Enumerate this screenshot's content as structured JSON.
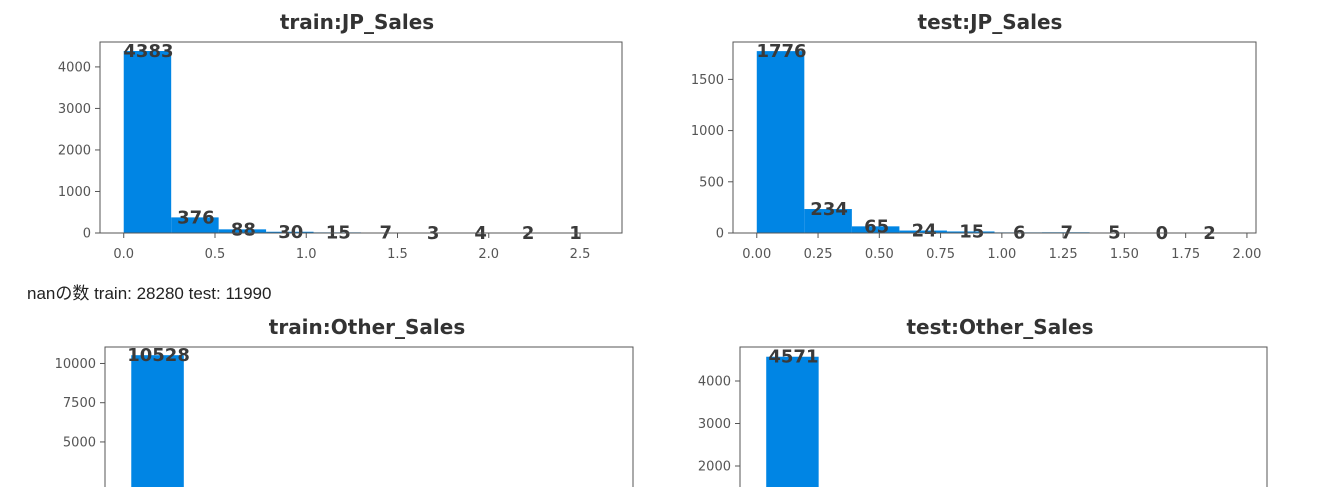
{
  "note": {
    "text": "nanの数 train: 28280 test: 11990"
  },
  "chart_data": [
    {
      "type": "bar",
      "title": "train:JP_Sales",
      "bar_color": "#0085e4",
      "bins": [
        {
          "x0": 0.0,
          "x1": 0.26,
          "count": 4383
        },
        {
          "x0": 0.26,
          "x1": 0.52,
          "count": 376
        },
        {
          "x0": 0.52,
          "x1": 0.78,
          "count": 88
        },
        {
          "x0": 0.78,
          "x1": 1.04,
          "count": 30
        },
        {
          "x0": 1.04,
          "x1": 1.3,
          "count": 15
        },
        {
          "x0": 1.3,
          "x1": 1.56,
          "count": 7
        },
        {
          "x0": 1.56,
          "x1": 1.82,
          "count": 3
        },
        {
          "x0": 1.82,
          "x1": 2.08,
          "count": 4
        },
        {
          "x0": 2.08,
          "x1": 2.34,
          "count": 2
        },
        {
          "x0": 2.34,
          "x1": 2.6,
          "count": 1
        }
      ],
      "xlim": [
        -0.13,
        2.73
      ],
      "ylim": [
        0,
        4600
      ],
      "xticks": [
        0.0,
        0.5,
        1.0,
        1.5,
        2.0,
        2.5
      ],
      "xtick_labels": [
        "0.0",
        "0.5",
        "1.0",
        "1.5",
        "2.0",
        "2.5"
      ],
      "yticks": [
        0,
        1000,
        2000,
        3000,
        4000
      ],
      "ytick_labels": [
        "0",
        "1000",
        "2000",
        "3000",
        "4000"
      ]
    },
    {
      "type": "bar",
      "title": "test:JP_Sales",
      "bar_color": "#0085e4",
      "bins": [
        {
          "x0": 0.0,
          "x1": 0.194,
          "count": 1776
        },
        {
          "x0": 0.194,
          "x1": 0.388,
          "count": 234
        },
        {
          "x0": 0.388,
          "x1": 0.582,
          "count": 65
        },
        {
          "x0": 0.582,
          "x1": 0.776,
          "count": 24
        },
        {
          "x0": 0.776,
          "x1": 0.97,
          "count": 15
        },
        {
          "x0": 0.97,
          "x1": 1.164,
          "count": 6
        },
        {
          "x0": 1.164,
          "x1": 1.358,
          "count": 7
        },
        {
          "x0": 1.358,
          "x1": 1.552,
          "count": 5
        },
        {
          "x0": 1.552,
          "x1": 1.746,
          "count": 0
        },
        {
          "x0": 1.746,
          "x1": 1.94,
          "count": 2
        }
      ],
      "xlim": [
        -0.097,
        2.037
      ],
      "ylim": [
        0,
        1865
      ],
      "xticks": [
        0.0,
        0.25,
        0.5,
        0.75,
        1.0,
        1.25,
        1.5,
        1.75,
        2.0
      ],
      "xtick_labels": [
        "0.00",
        "0.25",
        "0.50",
        "0.75",
        "1.00",
        "1.25",
        "1.50",
        "1.75",
        "2.00"
      ],
      "yticks": [
        0,
        500,
        1000,
        1500
      ],
      "ytick_labels": [
        "0",
        "500",
        "1000",
        "1500"
      ]
    },
    {
      "type": "bar",
      "title": "train:Other_Sales",
      "bar_color": "#0085e4",
      "bins": [
        {
          "x0": 0.0,
          "x1": 1.0,
          "count": 10528
        }
      ],
      "xlim": [
        -0.5,
        9.55
      ],
      "ylim": [
        1300,
        11050
      ],
      "xticks": [],
      "xtick_labels": [],
      "yticks": [
        5000,
        7500,
        10000
      ],
      "ytick_labels": [
        "5000",
        "7500",
        "10000"
      ]
    },
    {
      "type": "bar",
      "title": "test:Other_Sales",
      "bar_color": "#0085e4",
      "bins": [
        {
          "x0": 0.0,
          "x1": 1.0,
          "count": 4571
        }
      ],
      "xlim": [
        -0.5,
        9.55
      ],
      "ylim": [
        1200,
        4800
      ],
      "xticks": [],
      "xtick_labels": [],
      "yticks": [
        2000,
        3000,
        4000
      ],
      "ytick_labels": [
        "2000",
        "3000",
        "4000"
      ]
    }
  ]
}
